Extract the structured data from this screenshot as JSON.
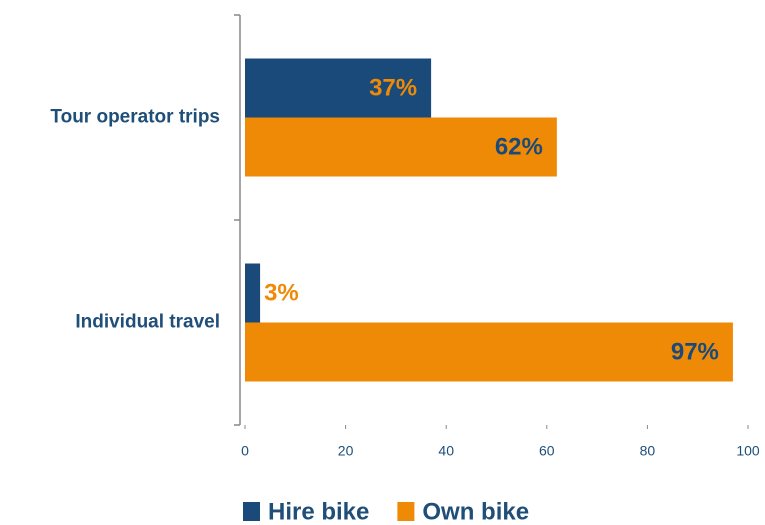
{
  "chart_data": {
    "type": "barh",
    "categories": [
      "Tour operator trips",
      "Individual travel"
    ],
    "series": [
      {
        "name": "Hire bike",
        "color": "#1a4a7a",
        "values": [
          37,
          3
        ],
        "value_labels": [
          "37%",
          "3%"
        ]
      },
      {
        "name": "Own bike",
        "color": "#ef8a06",
        "values": [
          62,
          97
        ],
        "value_labels": [
          "62%",
          "97%"
        ]
      }
    ],
    "xlim": [
      0,
      100
    ],
    "xticks": [
      0,
      20,
      40,
      60,
      80,
      100
    ],
    "legend": "bottom"
  }
}
